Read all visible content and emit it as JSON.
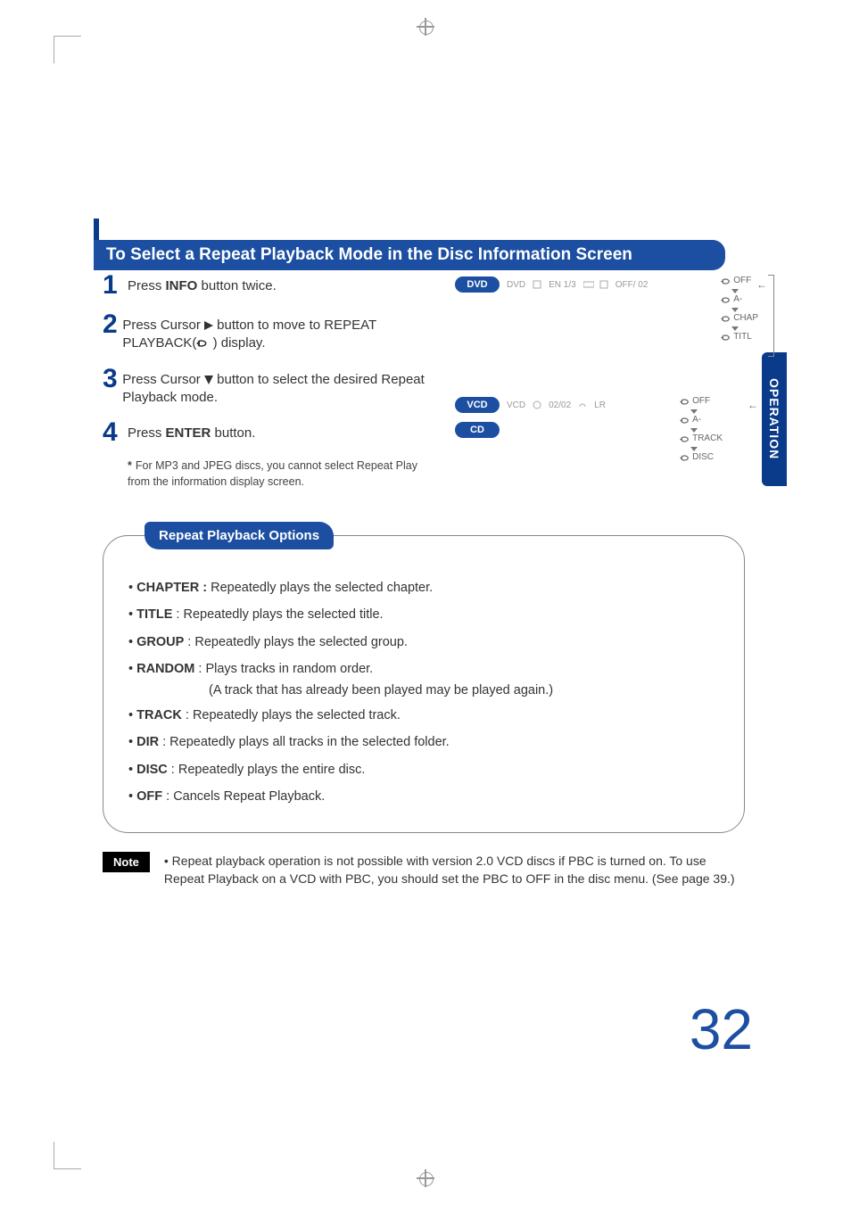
{
  "colors": {
    "brand_blue": "#1c4fa1",
    "dark_blue": "#0a3a8a",
    "text": "#333333",
    "muted": "#888888",
    "note_bg": "#000000"
  },
  "title": {
    "text": "To Select a Repeat Playback Mode in the Disc Information Screen"
  },
  "side_tab": "OPERATION",
  "steps": [
    {
      "num": "1",
      "pre": "Press ",
      "kw": "INFO",
      "post": " button twice."
    },
    {
      "num": "2",
      "pre": "Press Cursor ",
      "icon": "right",
      "mid": " button to move to REPEAT PLAYBACK(",
      "icon2": "repeat",
      "post": " ) display."
    },
    {
      "num": "3",
      "pre": "Press Cursor ",
      "icon": "down",
      "post": " button to select the desired Repeat Playback mode."
    },
    {
      "num": "4",
      "pre": "Press ",
      "kw": "ENTER",
      "post": " button."
    }
  ],
  "footnote": {
    "star": "*",
    "text": "For MP3 and JPEG discs, you cannot select Repeat Play from the information display screen."
  },
  "osd_dvd": {
    "pill": "DVD",
    "row": [
      "DVD",
      "EN 1/3",
      "OFF/ 02"
    ],
    "modes": [
      "OFF",
      "A-",
      "CHAP",
      "TITL"
    ]
  },
  "osd_vcd": {
    "pills": [
      "VCD",
      "CD"
    ],
    "row": [
      "VCD",
      "02/02",
      "LR"
    ],
    "modes": [
      "OFF",
      "A-",
      "TRACK",
      "DISC"
    ]
  },
  "options": {
    "tab": "Repeat Playback Options",
    "items": [
      {
        "lead": "CHAPTER :",
        "text": " Repeatedly plays the selected chapter."
      },
      {
        "lead": "TITLE",
        "text": " : Repeatedly plays the selected title."
      },
      {
        "lead": "GROUP",
        "text": " : Repeatedly plays the selected group."
      },
      {
        "lead": "RANDOM",
        "text": " : Plays tracks in random order.",
        "sub": "(A track that has already been played may be played again.)"
      },
      {
        "lead": "TRACK",
        "text": " : Repeatedly plays the selected track."
      },
      {
        "lead": "DIR",
        "text": " : Repeatedly plays all tracks in the selected folder."
      },
      {
        "lead": "DISC",
        "text": " : Repeatedly plays the entire disc."
      },
      {
        "lead": "OFF",
        "text": " : Cancels Repeat Playback."
      }
    ]
  },
  "note": {
    "label": "Note",
    "text": "• Repeat playback operation is not possible with version 2.0 VCD discs if PBC is turned on. To use Repeat Playback on a VCD with PBC, you should set the PBC to OFF in the disc menu. (See page 39.)"
  },
  "page_number": "32"
}
